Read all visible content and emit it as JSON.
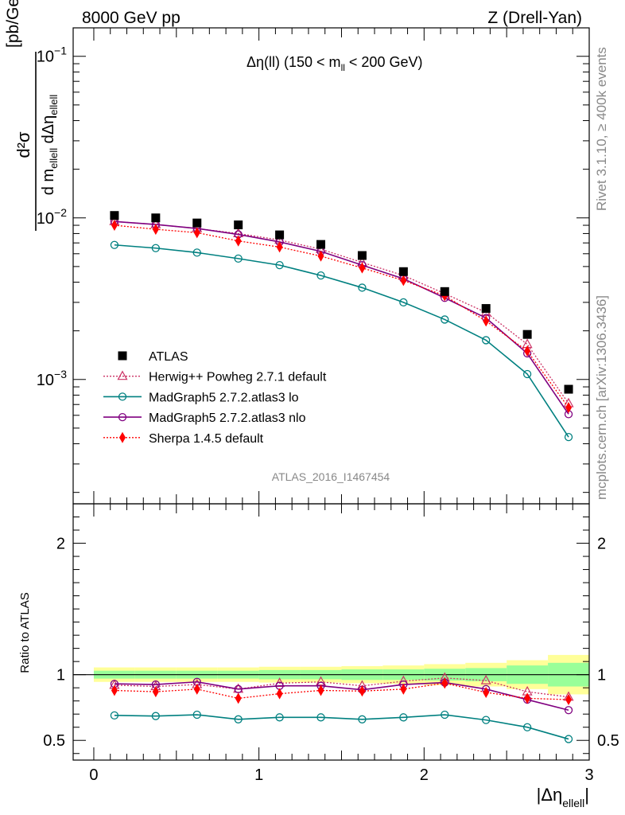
{
  "header": {
    "left": "8000 GeV pp",
    "right": "Z (Drell-Yan)"
  },
  "side_text": {
    "rivet": "Rivet 3.1.10, ≥ 400k events",
    "mcplots": "mcplots.cern.ch [arXiv:1306.3436]"
  },
  "watermark": "ATLAS_2016_I1467454",
  "colors": {
    "atlas": "#000000",
    "herwig": "#cc3366",
    "mg_lo": "#008080",
    "mg_nlo": "#800080",
    "sherpa": "#ff0000",
    "band_yellow": "#ffff99",
    "band_green": "#99ff99"
  },
  "chart_data": [
    {
      "type": "line",
      "scale": "log",
      "title": {
        "main": "Δη(ll) (150 < m",
        "sub": "ll",
        "tail": " < 200 GeV)"
      },
      "ylabel": {
        "num": "d²σ",
        "den": "d m",
        "den_sub": "ellell",
        "den_mid": " dΔη",
        "den_sub2": "ellell",
        "unit": "[pb/GeV]"
      },
      "ylim": [
        0.00017,
        0.15
      ],
      "yticks": [
        {
          "v": 0.1,
          "base": "10",
          "exp": "−1"
        },
        {
          "v": 0.01,
          "base": "10",
          "exp": "−2"
        },
        {
          "v": 0.001,
          "base": "10",
          "exp": "−3"
        }
      ],
      "xlim": [
        -0.125,
        3.0
      ],
      "x": [
        0.125,
        0.375,
        0.625,
        0.875,
        1.125,
        1.375,
        1.625,
        1.875,
        2.125,
        2.375,
        2.625,
        2.875
      ],
      "series": [
        {
          "name": "ATLAS",
          "key": "atlas",
          "values": [
            0.01035,
            0.01,
            0.0093,
            0.00905,
            0.00785,
            0.00685,
            0.00585,
            0.00465,
            0.0035,
            0.00275,
            0.0019,
            0.00087
          ]
        },
        {
          "name": "Herwig++ Powheg 2.7.1 default",
          "key": "herwig",
          "values": [
            0.0095,
            0.0091,
            0.0086,
            0.008,
            0.0073,
            0.0064,
            0.0053,
            0.0044,
            0.0034,
            0.0026,
            0.00165,
            0.00071
          ]
        },
        {
          "name": "MadGraph5 2.7.2.atlas3 lo",
          "key": "mg_lo",
          "values": [
            0.0068,
            0.0065,
            0.0061,
            0.0056,
            0.0051,
            0.0044,
            0.0037,
            0.003,
            0.00235,
            0.00175,
            0.00108,
            0.00044
          ]
        },
        {
          "name": "MadGraph5 2.7.2.atlas3 nlo",
          "key": "mg_nlo",
          "values": [
            0.0095,
            0.0091,
            0.0086,
            0.0079,
            0.0071,
            0.0062,
            0.0051,
            0.0042,
            0.0032,
            0.0024,
            0.00145,
            0.00061
          ]
        },
        {
          "name": "Sherpa 1.4.5 default",
          "key": "sherpa",
          "values": [
            0.009,
            0.0085,
            0.0081,
            0.0072,
            0.0066,
            0.0058,
            0.0049,
            0.0041,
            0.0033,
            0.0023,
            0.0015,
            0.00067
          ]
        }
      ]
    },
    {
      "type": "line",
      "scale": "linear",
      "ylabel": "Ratio to ATLAS",
      "ylim": [
        0.35,
        2.3
      ],
      "yticks": [
        0.5,
        1,
        2
      ],
      "ytick_labels": [
        "0.5",
        "1",
        "2"
      ],
      "xlim": [
        -0.125,
        3.0
      ],
      "xticks": [
        0,
        1,
        2,
        3
      ],
      "xtick_labels": [
        "0",
        "1",
        "2",
        "3"
      ],
      "xlabel": {
        "main": "|Δη",
        "sub": "ellell",
        "tail": "|"
      },
      "x": [
        0.125,
        0.375,
        0.625,
        0.875,
        1.125,
        1.375,
        1.625,
        1.875,
        2.125,
        2.375,
        2.625,
        2.875
      ],
      "band_edges": [
        0,
        0.25,
        0.5,
        0.75,
        1.0,
        1.25,
        1.5,
        1.75,
        2.0,
        2.25,
        2.5,
        2.75,
        3.0
      ],
      "band_yellow": [
        0.055,
        0.055,
        0.055,
        0.055,
        0.06,
        0.06,
        0.065,
        0.07,
        0.08,
        0.09,
        0.11,
        0.15
      ],
      "band_green": [
        0.03,
        0.03,
        0.03,
        0.03,
        0.035,
        0.035,
        0.04,
        0.04,
        0.045,
        0.05,
        0.07,
        0.09
      ],
      "series": [
        {
          "name": "Herwig++ Powheg 2.7.1 default",
          "key": "herwig",
          "values": [
            0.92,
            0.91,
            0.925,
            0.89,
            0.935,
            0.945,
            0.915,
            0.95,
            0.975,
            0.955,
            0.87,
            0.83
          ]
        },
        {
          "name": "MadGraph5 2.7.2.atlas3 lo",
          "key": "mg_lo",
          "values": [
            0.69,
            0.685,
            0.695,
            0.66,
            0.675,
            0.675,
            0.66,
            0.675,
            0.695,
            0.655,
            0.6,
            0.51
          ]
        },
        {
          "name": "MadGraph5 2.7.2.atlas3 nlo",
          "key": "mg_nlo",
          "values": [
            0.93,
            0.925,
            0.945,
            0.89,
            0.915,
            0.915,
            0.885,
            0.925,
            0.94,
            0.89,
            0.81,
            0.73
          ]
        },
        {
          "name": "Sherpa 1.4.5 default",
          "key": "sherpa",
          "values": [
            0.88,
            0.87,
            0.89,
            0.82,
            0.855,
            0.88,
            0.875,
            0.89,
            0.935,
            0.865,
            0.82,
            0.81
          ]
        }
      ]
    }
  ]
}
